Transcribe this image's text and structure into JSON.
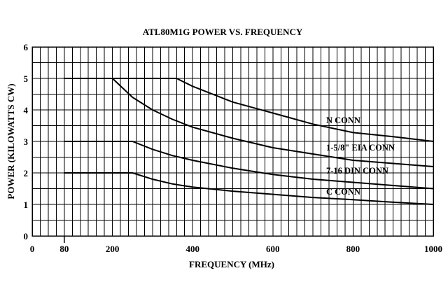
{
  "chart_data": {
    "type": "line",
    "title": "ATL80M1G POWER VS. FREQUENCY",
    "xlabel": "FREQUENCY (MHz)",
    "ylabel": "POWER (KILOWATTS CW)",
    "xlim": [
      0,
      1000
    ],
    "ylim": [
      0,
      6
    ],
    "x_ticks": [
      0,
      80,
      200,
      400,
      600,
      800,
      1000
    ],
    "y_ticks": [
      0,
      1,
      2,
      3,
      4,
      5,
      6
    ],
    "grid": true,
    "series": [
      {
        "name": "1-5/8\" EIA CONN",
        "points": [
          [
            80,
            5.0
          ],
          [
            200,
            5.0
          ],
          [
            250,
            4.4
          ],
          [
            300,
            4.0
          ],
          [
            350,
            3.7
          ],
          [
            400,
            3.45
          ],
          [
            500,
            3.1
          ],
          [
            600,
            2.8
          ],
          [
            700,
            2.6
          ],
          [
            800,
            2.4
          ],
          [
            900,
            2.3
          ],
          [
            1000,
            2.2
          ]
        ]
      },
      {
        "name": "7-16 DIN CONN",
        "points": [
          [
            80,
            3.0
          ],
          [
            250,
            3.0
          ],
          [
            300,
            2.75
          ],
          [
            350,
            2.55
          ],
          [
            400,
            2.4
          ],
          [
            500,
            2.15
          ],
          [
            600,
            1.95
          ],
          [
            700,
            1.8
          ],
          [
            800,
            1.7
          ],
          [
            900,
            1.6
          ],
          [
            1000,
            1.5
          ]
        ]
      },
      {
        "name": "C CONN",
        "points": [
          [
            80,
            2.0
          ],
          [
            250,
            2.0
          ],
          [
            300,
            1.8
          ],
          [
            350,
            1.65
          ],
          [
            400,
            1.55
          ],
          [
            500,
            1.42
          ],
          [
            600,
            1.32
          ],
          [
            700,
            1.22
          ],
          [
            800,
            1.15
          ],
          [
            900,
            1.07
          ],
          [
            1000,
            1.0
          ]
        ]
      },
      {
        "name": "N CONN",
        "points": [
          [
            80,
            5.0
          ],
          [
            360,
            5.0
          ],
          [
            400,
            4.75
          ],
          [
            500,
            4.25
          ],
          [
            600,
            3.9
          ],
          [
            700,
            3.55
          ],
          [
            800,
            3.28
          ],
          [
            900,
            3.15
          ],
          [
            1000,
            3.0
          ]
        ]
      }
    ]
  }
}
